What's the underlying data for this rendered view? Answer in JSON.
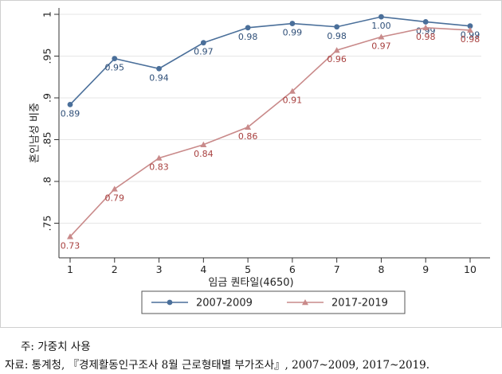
{
  "chart_data": {
    "type": "line",
    "xlabel": "임금 퀀타일(4650)",
    "ylabel": "혼인남성 비중",
    "x": [
      1,
      2,
      3,
      4,
      5,
      6,
      7,
      8,
      9,
      10
    ],
    "xlim": [
      1,
      10
    ],
    "ylim": [
      0.72,
      1.0
    ],
    "yticks": [
      0.75,
      0.8,
      0.85,
      0.9,
      0.95,
      1.0
    ],
    "ytick_labels": [
      ".75",
      ".8",
      ".85",
      ".9",
      ".95",
      "1"
    ],
    "grid": true,
    "legend_position": "bottom",
    "series": [
      {
        "name": "2007-2009",
        "color": "#4a6f9a",
        "marker": "circle",
        "values": [
          0.892,
          0.947,
          0.935,
          0.966,
          0.984,
          0.989,
          0.985,
          0.997,
          0.991,
          0.986
        ],
        "labels": [
          "0.89",
          "0.95",
          "0.94",
          "0.97",
          "0.98",
          "0.99",
          "0.98",
          "1.00",
          "0.99",
          "0.99"
        ]
      },
      {
        "name": "2017-2019",
        "color": "#c98a8a",
        "marker": "triangle",
        "values": [
          0.734,
          0.791,
          0.828,
          0.844,
          0.865,
          0.908,
          0.957,
          0.973,
          0.984,
          0.981
        ],
        "labels": [
          "0.73",
          "0.79",
          "0.83",
          "0.84",
          "0.86",
          "0.91",
          "0.96",
          "0.97",
          "0.98",
          "0.98"
        ]
      }
    ]
  },
  "notes": {
    "weight": "주: 가중치 사용",
    "source": "자료: 통계청, 『경제활동인구조사 8월 근로형태별 부가조사』, 2007~2009, 2017~2019."
  }
}
